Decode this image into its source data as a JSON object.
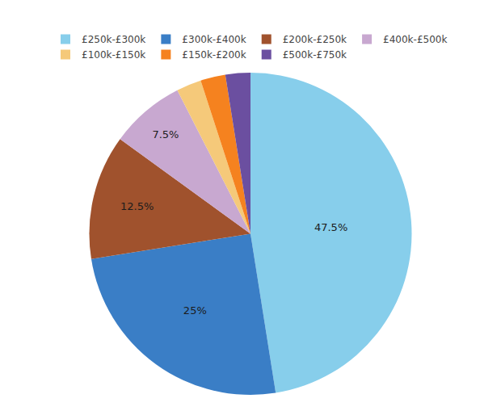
{
  "chart_data": {
    "type": "pie",
    "categories": [
      "£250k-£300k",
      "£300k-£400k",
      "£200k-£250k",
      "£400k-£500k",
      "£100k-£150k",
      "£150k-£200k",
      "£500k-£750k"
    ],
    "values": [
      47.5,
      25.0,
      12.5,
      7.5,
      2.5,
      2.5,
      2.5
    ],
    "value_labels": [
      "47.5%",
      "25%",
      "12.5%",
      "7.5%",
      null,
      null,
      null
    ],
    "data_labels": true,
    "colors": [
      "#87CEEB",
      "#3A7EC6",
      "#A0522D",
      "#C8A8D0",
      "#F5C97A",
      "#F5821F",
      "#6B4FA0"
    ],
    "legend": "top"
  }
}
